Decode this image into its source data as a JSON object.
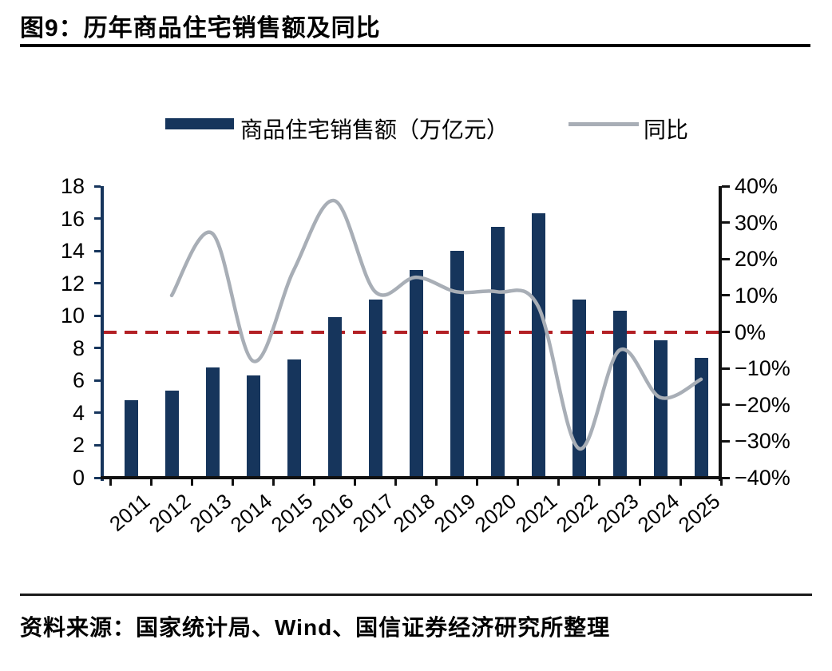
{
  "figure": {
    "title": "图9：历年商品住宅销售额及同比",
    "source": "资料来源：国家统计局、Wind、国信证券经济研究所整理"
  },
  "legend": {
    "bar_label": "商品住宅销售额（万亿元）",
    "line_label": "同比"
  },
  "chart_data": {
    "type": "bar+line",
    "categories": [
      "2011",
      "2012",
      "2013",
      "2014",
      "2015",
      "2016",
      "2017",
      "2018",
      "2019",
      "2020",
      "2021",
      "2022",
      "2023",
      "2024",
      "2025"
    ],
    "series": [
      {
        "name": "商品住宅销售额（万亿元）",
        "type": "bar",
        "axis": "left",
        "values": [
          4.8,
          5.4,
          6.8,
          6.3,
          7.3,
          9.9,
          11.0,
          12.8,
          14.0,
          15.5,
          16.3,
          11.0,
          10.3,
          8.5,
          7.4
        ]
      },
      {
        "name": "同比",
        "type": "line",
        "axis": "right",
        "values": [
          null,
          10,
          27,
          -8,
          17,
          36,
          11,
          15,
          11,
          11,
          7,
          -32,
          -5,
          -18,
          -13
        ]
      }
    ],
    "left_axis": {
      "min": 0,
      "max": 18,
      "step": 2,
      "tick_labels": [
        "18",
        "16",
        "14",
        "12",
        "10",
        "8",
        "6",
        "4",
        "2",
        "0"
      ]
    },
    "right_axis": {
      "min": -40,
      "max": 40,
      "step": 10,
      "tick_labels": [
        "40%",
        "30%",
        "20%",
        "10%",
        "0%",
        "-10%",
        "-20%",
        "-30%",
        "-40%"
      ]
    },
    "zero_line": {
      "right_axis_value": 0,
      "style": "dashed"
    },
    "legend_position": "top",
    "grid": false
  },
  "colors": {
    "bar": "#16355c",
    "line": "#a8aeb6",
    "zero_line": "#b32025",
    "left_axis": "#16355c",
    "dark_axis": "#111111",
    "text": "#000000"
  }
}
